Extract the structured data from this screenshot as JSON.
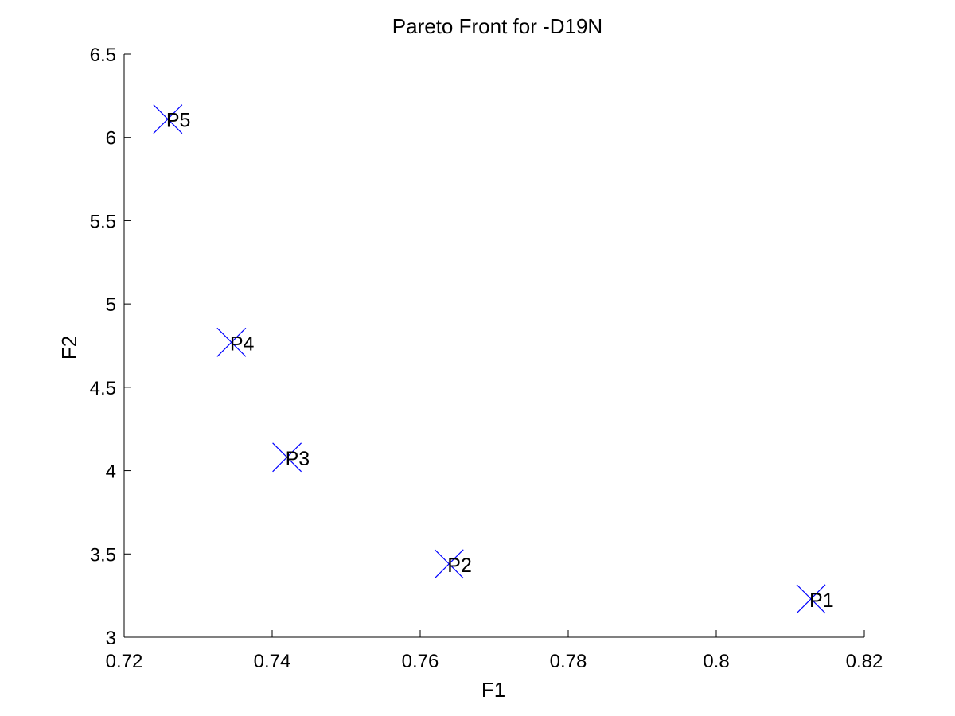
{
  "chart_data": {
    "type": "scatter",
    "title": "Pareto Front for -D19N",
    "xlabel": "F1",
    "ylabel": "F2",
    "xlim": [
      0.72,
      0.82
    ],
    "ylim": [
      3,
      6.5
    ],
    "xticks": [
      "0.72",
      "0.74",
      "0.76",
      "0.78",
      "0.8",
      "0.82"
    ],
    "yticks": [
      "3",
      "3.5",
      "4",
      "4.5",
      "5",
      "5.5",
      "6",
      "6.5"
    ],
    "grid": false,
    "legend": "none",
    "marker": "x",
    "marker_color": "#0000ff",
    "points": [
      {
        "label": "P1",
        "x": 0.8128,
        "y": 3.23
      },
      {
        "label": "P2",
        "x": 0.7639,
        "y": 3.44
      },
      {
        "label": "P3",
        "x": 0.742,
        "y": 4.08
      },
      {
        "label": "P4",
        "x": 0.7345,
        "y": 4.77
      },
      {
        "label": "P5",
        "x": 0.7259,
        "y": 6.11
      }
    ]
  }
}
